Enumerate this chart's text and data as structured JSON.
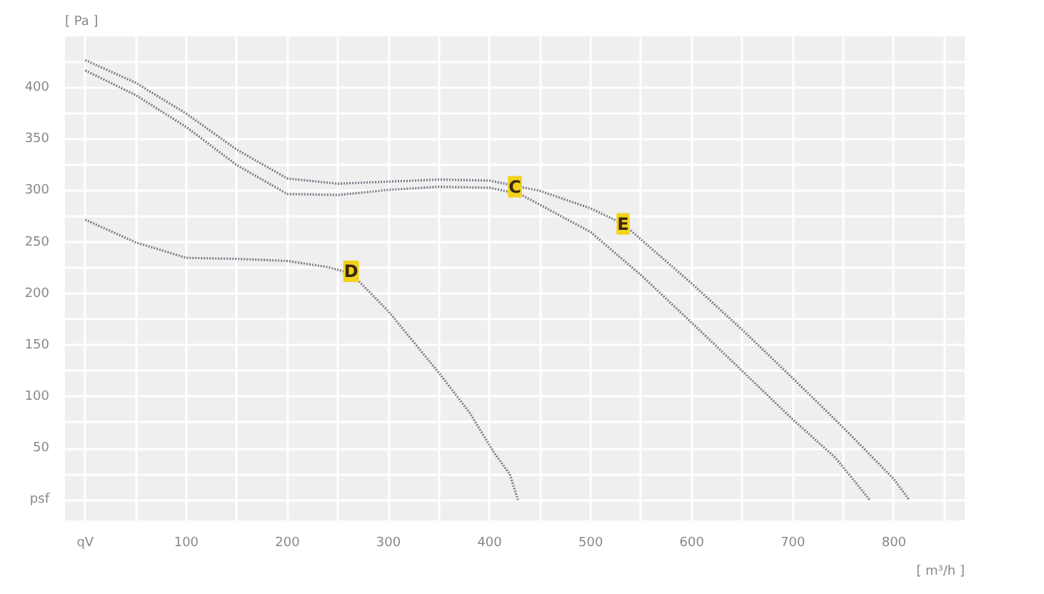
{
  "chart_data": {
    "type": "line",
    "xlabel": "[ m³/h ]",
    "ylabel": "[ Pa ]",
    "xlim": [
      -20,
      870
    ],
    "ylim": [
      -20,
      450
    ],
    "xticks": [
      {
        "value": 0,
        "label": "qV"
      },
      {
        "value": 50,
        "label": null
      },
      100,
      {
        "value": 150,
        "label": null
      },
      200,
      {
        "value": 250,
        "label": null
      },
      300,
      {
        "value": 350,
        "label": null
      },
      400,
      {
        "value": 450,
        "label": null
      },
      500,
      {
        "value": 550,
        "label": null
      },
      600,
      {
        "value": 650,
        "label": null
      },
      700,
      {
        "value": 750,
        "label": null
      },
      800,
      {
        "value": 850,
        "label": null
      }
    ],
    "yticks": [
      {
        "value": 0,
        "label": "psf"
      },
      {
        "value": 25,
        "label": null
      },
      50,
      {
        "value": 75,
        "label": null
      },
      100,
      {
        "value": 125,
        "label": null
      },
      150,
      {
        "value": 175,
        "label": null
      },
      200,
      {
        "value": 225,
        "label": null
      },
      250,
      {
        "value": 275,
        "label": null
      },
      300,
      {
        "value": 325,
        "label": null
      },
      350,
      {
        "value": 375,
        "label": null
      },
      400,
      {
        "value": 425,
        "label": null
      }
    ],
    "grid": true,
    "marker": "none",
    "line_style": "dotted",
    "series": [
      {
        "color": "#7a7a8a",
        "x": [
          0,
          50,
          100,
          150,
          200,
          250,
          300,
          350,
          400,
          450,
          500,
          532,
          600,
          650,
          700,
          750,
          800,
          815
        ],
        "values": [
          427,
          405,
          375,
          340,
          312,
          307,
          309,
          311,
          310,
          300,
          283,
          268,
          210,
          165,
          118,
          70,
          20,
          0
        ]
      },
      {
        "color": "#7a7a8a",
        "x": [
          0,
          50,
          100,
          150,
          200,
          250,
          300,
          350,
          400,
          430,
          500,
          550,
          600,
          650,
          700,
          742,
          776
        ],
        "values": [
          417,
          393,
          362,
          325,
          297,
          296,
          301,
          304,
          303,
          297,
          260,
          218,
          172,
          125,
          78,
          41,
          0
        ]
      },
      {
        "color": "#7a7a8a",
        "x": [
          0,
          50,
          100,
          150,
          200,
          240,
          263,
          300,
          351,
          380,
          405,
          420,
          428
        ],
        "values": [
          272,
          250,
          235,
          234,
          232,
          226,
          220,
          183,
          122,
          85,
          45,
          25,
          0
        ]
      }
    ],
    "annotations": [
      {
        "text": "C",
        "x": 425,
        "y": 304
      },
      {
        "text": "E",
        "x": 532,
        "y": 268
      },
      {
        "text": "D",
        "x": 263,
        "y": 222
      }
    ]
  }
}
